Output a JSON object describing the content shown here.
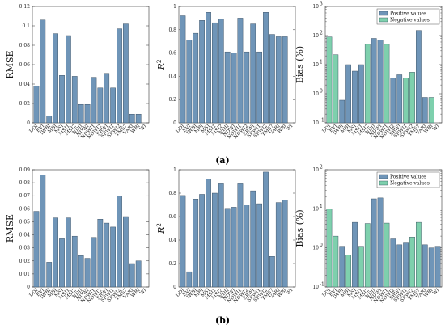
{
  "colors": {
    "positive": "#6f95b8",
    "negative": "#7ed0ad",
    "bar_stroke": "#2b3f52",
    "axis": "#333333"
  },
  "captions": {
    "a": "(a)",
    "b": "(b)"
  },
  "chart_data": [
    {
      "type": "bar",
      "panel": "a",
      "categories": [
        "DDI",
        "EVI",
        "IWBI",
        "MBI",
        "MSI",
        "MSI1",
        "MSI2",
        "NDII",
        "NDWI",
        "NDWI1",
        "NDWI2",
        "SRWI",
        "SRWI1",
        "SRWI2",
        "TM57",
        "VARI",
        "WBI",
        "WI"
      ],
      "values": [
        0.038,
        0.106,
        0.007,
        0.092,
        0.049,
        0.09,
        0.048,
        0.019,
        0.019,
        0.047,
        0.036,
        0.051,
        0.036,
        0.097,
        0.102,
        0.009,
        0.009,
        0
      ],
      "ylabel": "RMSE",
      "ylim": [
        0,
        0.12
      ],
      "yscale": "linear",
      "yticks": [
        0,
        0.02,
        0.04,
        0.06,
        0.08,
        0.1,
        0.12
      ],
      "yticklabels": [
        "0",
        "0.02",
        "0.04",
        "0.06",
        "0.08",
        "0.1",
        "0.12"
      ]
    },
    {
      "type": "bar",
      "panel": "a",
      "categories": [
        "DDI",
        "EVI",
        "IWBI",
        "MBI",
        "MSI",
        "MSI1",
        "MSI2",
        "NDII",
        "NDWI",
        "NDWI1",
        "NDWI2",
        "SRWI",
        "SRWI1",
        "SRWI2",
        "TM57",
        "VARI",
        "WBI",
        "WI"
      ],
      "values": [
        0.92,
        0.71,
        0.77,
        0.88,
        0.95,
        0.86,
        0.89,
        0.61,
        0.6,
        0.9,
        0.61,
        0.85,
        0.61,
        0.95,
        0.76,
        0.74,
        0.74,
        0
      ],
      "ylabel": "R^2",
      "ylim": [
        0,
        1
      ],
      "yscale": "linear",
      "yticks": [
        0,
        0.2,
        0.4,
        0.6,
        0.8,
        1
      ],
      "yticklabels": [
        "0",
        "0.2",
        "0.4",
        "0.6",
        "0.8",
        "1"
      ]
    },
    {
      "type": "bar",
      "panel": "a",
      "categories": [
        "DDI",
        "EVI",
        "IWBI",
        "MBI",
        "MSI",
        "MSI1",
        "MSI2",
        "NDII",
        "NDWI",
        "NDWI1",
        "NDWI2",
        "SRWI",
        "SRWI1",
        "SRWI2",
        "TM57",
        "VARI",
        "WBI",
        "WI"
      ],
      "values": [
        90,
        22,
        0.6,
        10,
        6,
        10,
        50,
        80,
        70,
        50,
        3.5,
        4.5,
        3.5,
        5.5,
        150,
        0.75,
        0.75,
        0
      ],
      "signs": [
        "neg",
        "neg",
        "pos",
        "pos",
        "pos",
        "pos",
        "neg",
        "pos",
        "pos",
        "neg",
        "pos",
        "pos",
        "neg",
        "neg",
        "pos",
        "pos",
        "neg",
        "neg"
      ],
      "ylabel": "Bias (%)",
      "ylim": [
        0.1,
        1000
      ],
      "yscale": "log",
      "yticks": [
        0.1,
        1,
        10,
        100,
        1000
      ],
      "yticklabels": [
        [
          "10",
          "-1"
        ],
        [
          "10",
          "0"
        ],
        [
          "10",
          "1"
        ],
        [
          "10",
          "2"
        ],
        [
          "10",
          "3"
        ]
      ],
      "legend": [
        "Positive values",
        "Negative values"
      ],
      "legend_position": "top-right"
    },
    {
      "type": "bar",
      "panel": "b",
      "categories": [
        "DDI",
        "EVI",
        "IWBI",
        "MBI",
        "MSI",
        "MSI1",
        "MSI2",
        "NDII",
        "NDWI",
        "NDWI1",
        "NDWI2",
        "SRWI",
        "SRWI1",
        "SRWI2",
        "TM57",
        "VARI",
        "WBI",
        "WI"
      ],
      "values": [
        0.058,
        0.086,
        0.019,
        0.053,
        0.037,
        0.053,
        0.039,
        0.024,
        0.022,
        0.038,
        0.052,
        0.049,
        0.046,
        0.07,
        0.054,
        0.018,
        0.02,
        0
      ],
      "ylabel": "RMSE",
      "ylim": [
        0,
        0.09
      ],
      "yscale": "linear",
      "yticks": [
        0,
        0.01,
        0.02,
        0.03,
        0.04,
        0.05,
        0.06,
        0.07,
        0.08,
        0.09
      ],
      "yticklabels": [
        "0",
        "0.01",
        "0.02",
        "0.03",
        "0.04",
        "0.05",
        "0.06",
        "0.07",
        "0.08",
        "0.09"
      ]
    },
    {
      "type": "bar",
      "panel": "b",
      "categories": [
        "DDI",
        "EVI",
        "IWBI",
        "MBI",
        "MSI",
        "MSI1",
        "MSI2",
        "NDII",
        "NDWI",
        "NDWI1",
        "NDWI2",
        "SRWI",
        "SRWI1",
        "SRWI2",
        "TM57",
        "VARI",
        "WBI",
        "WI"
      ],
      "values": [
        0.78,
        0.13,
        0.75,
        0.79,
        0.92,
        0.8,
        0.88,
        0.67,
        0.68,
        0.88,
        0.7,
        0.82,
        0.71,
        0.98,
        0.26,
        0.72,
        0.74,
        0
      ],
      "ylabel": "R^2",
      "ylim": [
        0,
        1
      ],
      "yscale": "linear",
      "yticks": [
        0,
        0.2,
        0.4,
        0.6,
        0.8,
        1
      ],
      "yticklabels": [
        "0",
        "0.2",
        "0.4",
        "0.6",
        "0.8",
        "1"
      ]
    },
    {
      "type": "bar",
      "panel": "b",
      "categories": [
        "DDI",
        "EVI",
        "IWBI",
        "MBI",
        "MSI",
        "MSI1",
        "MSI2",
        "NDII",
        "NDWI",
        "NDWI1",
        "NDWI2",
        "SRWI",
        "SRWI1",
        "SRWI2",
        "TM57",
        "VARI",
        "WBI",
        "WI"
      ],
      "values": [
        10,
        2,
        1.1,
        0.65,
        4.5,
        1.1,
        4.2,
        18,
        19,
        4.3,
        1.7,
        1.2,
        1.4,
        1.9,
        4.5,
        1.2,
        1,
        1.1
      ],
      "signs": [
        "neg",
        "neg",
        "pos",
        "neg",
        "pos",
        "neg",
        "neg",
        "pos",
        "pos",
        "neg",
        "pos",
        "pos",
        "pos",
        "neg",
        "neg",
        "pos",
        "pos",
        "pos"
      ],
      "ylabel": "Bias (%)",
      "ylim": [
        0.1,
        100
      ],
      "yscale": "log",
      "yticks": [
        0.1,
        1,
        10,
        100
      ],
      "yticklabels": [
        [
          "10",
          "-1"
        ],
        [
          "10",
          "0"
        ],
        [
          "10",
          "1"
        ],
        [
          "10",
          "2"
        ]
      ],
      "legend": [
        "Positive values",
        "Negative values"
      ],
      "legend_position": "top-right"
    }
  ]
}
